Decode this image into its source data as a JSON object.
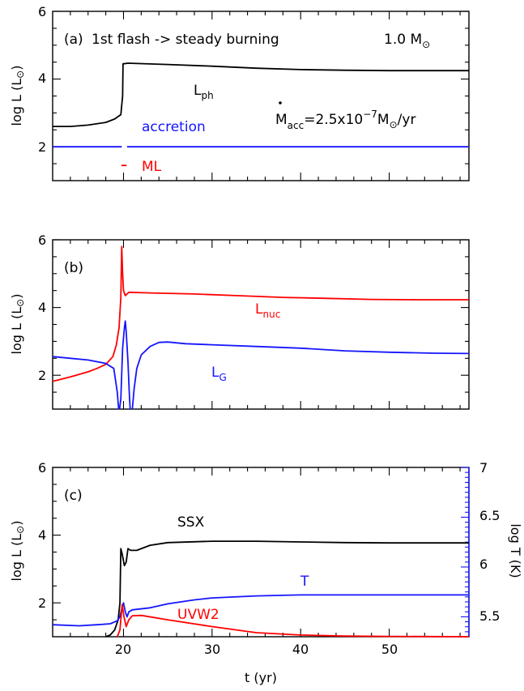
{
  "chart_data": [
    {
      "type": "line",
      "panel_label": "(a)",
      "title": "1st flash -> steady burning",
      "mass_label": "1.0 M",
      "mass_symbol": "⊙",
      "mdot_text": "M",
      "mdot_sub": "acc",
      "mdot_value": "=2.5x10",
      "mdot_exp": "−7",
      "mdot_unit": "M",
      "mdot_unit_tail": "/yr",
      "ylabel": "log L (L",
      "ylabel_sym": "⊙",
      "ylabel_end": ")",
      "xlim": [
        12,
        59
      ],
      "ylim": [
        1,
        6
      ],
      "yticks": [
        "2",
        "4",
        "6"
      ],
      "series": [
        {
          "name": "L",
          "name_sub": "ph",
          "color": "#000000",
          "points": [
            [
              12,
              2.6
            ],
            [
              14,
              2.6
            ],
            [
              16,
              2.64
            ],
            [
              18,
              2.72
            ],
            [
              19,
              2.82
            ],
            [
              19.7,
              2.95
            ],
            [
              19.9,
              3.5
            ],
            [
              19.95,
              4.45
            ],
            [
              20.5,
              4.47
            ],
            [
              25,
              4.43
            ],
            [
              30,
              4.38
            ],
            [
              35,
              4.32
            ],
            [
              40,
              4.28
            ],
            [
              45,
              4.26
            ],
            [
              50,
              4.25
            ],
            [
              55,
              4.25
            ],
            [
              59,
              4.25
            ]
          ]
        },
        {
          "name": "accretion",
          "color": "#1515ff",
          "points": [
            [
              12,
              2
            ],
            [
              19.8,
              2
            ],
            [
              null,
              null
            ],
            [
              20.4,
              2
            ],
            [
              59,
              2
            ]
          ]
        },
        {
          "name": "ML",
          "color": "#ff0000",
          "points": [
            [
              19.75,
              1.45
            ],
            [
              20.35,
              1.45
            ]
          ]
        }
      ]
    },
    {
      "type": "line",
      "panel_label": "(b)",
      "ylabel": "log L (L",
      "ylabel_sym": "⊙",
      "ylabel_end": ")",
      "xlim": [
        12,
        59
      ],
      "ylim": [
        1,
        6
      ],
      "yticks": [
        "2",
        "4",
        "6"
      ],
      "series": [
        {
          "name": "L",
          "name_sub": "nuc",
          "color": "#ff0000",
          "points": [
            [
              12,
              1.82
            ],
            [
              14,
              1.95
            ],
            [
              16,
              2.1
            ],
            [
              17,
              2.2
            ],
            [
              18,
              2.32
            ],
            [
              18.8,
              2.55
            ],
            [
              19.2,
              2.9
            ],
            [
              19.5,
              3.4
            ],
            [
              19.7,
              4.3
            ],
            [
              19.8,
              5.8
            ],
            [
              19.9,
              5
            ],
            [
              20,
              4.5
            ],
            [
              20.2,
              4.35
            ],
            [
              20.6,
              4.45
            ],
            [
              23,
              4.43
            ],
            [
              28,
              4.4
            ],
            [
              33,
              4.35
            ],
            [
              38,
              4.3
            ],
            [
              43,
              4.27
            ],
            [
              48,
              4.24
            ],
            [
              53,
              4.23
            ],
            [
              59,
              4.23
            ]
          ]
        },
        {
          "name": "L",
          "name_sub": "G",
          "color": "#1515ff",
          "points": [
            [
              12,
              2.55
            ],
            [
              14,
              2.5
            ],
            [
              16,
              2.45
            ],
            [
              18,
              2.35
            ],
            [
              18.9,
              2.2
            ],
            [
              19.3,
              1.5
            ],
            [
              19.45,
              1
            ],
            [
              null,
              null
            ],
            [
              19.55,
              1
            ],
            [
              19.7,
              1.3
            ],
            [
              19.9,
              2.8
            ],
            [
              20.1,
              3.4
            ],
            [
              20.2,
              3.6
            ],
            [
              20.3,
              3.3
            ],
            [
              20.5,
              2.4
            ],
            [
              20.65,
              1.5
            ],
            [
              20.75,
              1
            ],
            [
              null,
              null
            ],
            [
              21,
              1
            ],
            [
              21.2,
              1.6
            ],
            [
              21.5,
              2.2
            ],
            [
              22,
              2.6
            ],
            [
              23,
              2.85
            ],
            [
              24,
              2.97
            ],
            [
              25,
              2.98
            ],
            [
              27,
              2.93
            ],
            [
              30,
              2.9
            ],
            [
              35,
              2.85
            ],
            [
              40,
              2.8
            ],
            [
              45,
              2.72
            ],
            [
              50,
              2.68
            ],
            [
              55,
              2.65
            ],
            [
              59,
              2.64
            ]
          ]
        }
      ]
    },
    {
      "type": "line",
      "panel_label": "(c)",
      "ylabel": "log L (L",
      "ylabel_sym": "⊙",
      "ylabel_end": ")",
      "y2label": "log T (K)",
      "xlabel": "t (yr)",
      "xlim": [
        12,
        59
      ],
      "ylim": [
        1,
        6
      ],
      "y2lim": [
        5.3,
        7
      ],
      "xticks": [
        "20",
        "30",
        "40",
        "50"
      ],
      "yticks": [
        "2",
        "4",
        "6"
      ],
      "y2ticks": [
        "5.5",
        "6",
        "6.5",
        "7"
      ],
      "series": [
        {
          "name": "SSX",
          "color": "#000000",
          "axis": "left",
          "points": [
            [
              18,
              1
            ],
            [
              18.5,
              1.05
            ],
            [
              19,
              1.2
            ],
            [
              19.4,
              1.5
            ],
            [
              19.6,
              2
            ],
            [
              19.7,
              3.6
            ],
            [
              19.85,
              3.45
            ],
            [
              20.1,
              3.1
            ],
            [
              20.3,
              3.2
            ],
            [
              20.5,
              3.6
            ],
            [
              20.8,
              3.55
            ],
            [
              21.5,
              3.55
            ],
            [
              23,
              3.7
            ],
            [
              25,
              3.78
            ],
            [
              30,
              3.82
            ],
            [
              35,
              3.82
            ],
            [
              40,
              3.8
            ],
            [
              45,
              3.78
            ],
            [
              50,
              3.77
            ],
            [
              55,
              3.77
            ],
            [
              59,
              3.77
            ]
          ]
        },
        {
          "name": "T",
          "color": "#1515ff",
          "axis": "right",
          "points": [
            [
              12,
              5.42
            ],
            [
              15,
              5.41
            ],
            [
              17,
              5.42
            ],
            [
              18.5,
              5.43
            ],
            [
              19.3,
              5.46
            ],
            [
              19.6,
              5.5
            ],
            [
              19.8,
              5.58
            ],
            [
              20,
              5.64
            ],
            [
              20.2,
              5.55
            ],
            [
              20.4,
              5.5
            ],
            [
              20.6,
              5.55
            ],
            [
              21,
              5.57
            ],
            [
              23,
              5.59
            ],
            [
              25,
              5.63
            ],
            [
              28,
              5.67
            ],
            [
              30,
              5.69
            ],
            [
              35,
              5.71
            ],
            [
              40,
              5.72
            ],
            [
              45,
              5.72
            ],
            [
              50,
              5.72
            ],
            [
              55,
              5.72
            ],
            [
              59,
              5.72
            ]
          ]
        },
        {
          "name": "UVW2",
          "color": "#ff0000",
          "axis": "left",
          "points": [
            [
              19.3,
              1
            ],
            [
              19.6,
              1.2
            ],
            [
              19.85,
              1.95
            ],
            [
              20.05,
              1.6
            ],
            [
              20.3,
              1.3
            ],
            [
              20.6,
              1.5
            ],
            [
              21,
              1.62
            ],
            [
              22,
              1.63
            ],
            [
              25,
              1.5
            ],
            [
              30,
              1.3
            ],
            [
              35,
              1.12
            ],
            [
              40,
              1.05
            ],
            [
              45,
              1.02
            ],
            [
              50,
              1.01
            ],
            [
              59,
              1
            ]
          ]
        }
      ]
    }
  ]
}
